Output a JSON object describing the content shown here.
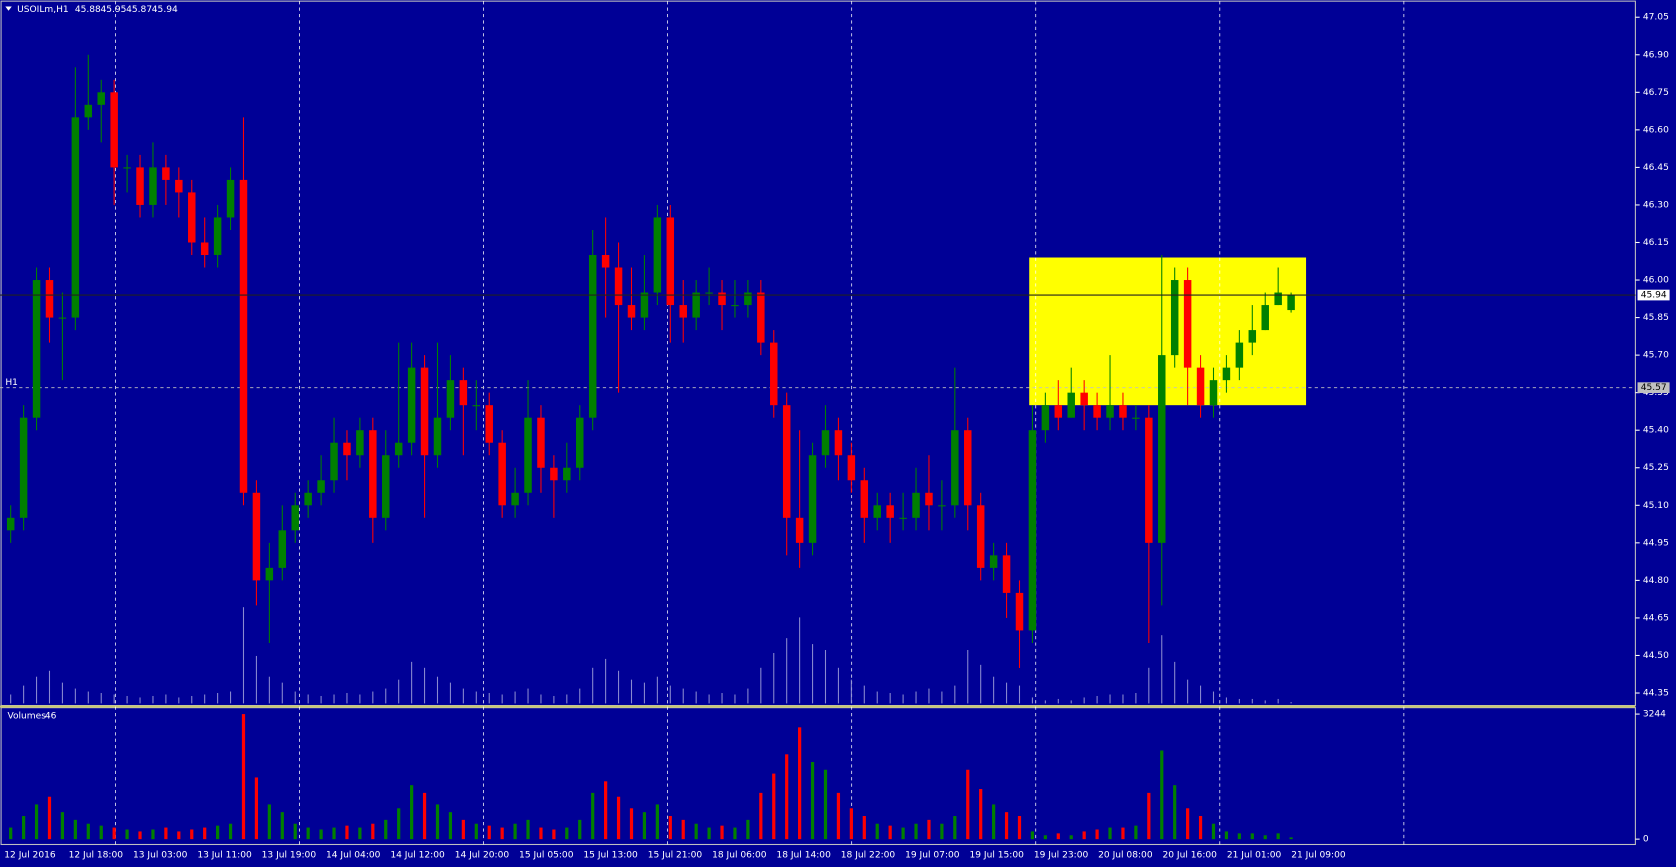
{
  "chart_data": {
    "type": "candlestick",
    "symbol": "USOILm,H1",
    "x_labels": [
      "12 Jul 2016",
      "12 Jul 18:00",
      "13 Jul 03:00",
      "13 Jul 11:00",
      "13 Jul 19:00",
      "14 Jul 04:00",
      "14 Jul 12:00",
      "14 Jul 20:00",
      "15 Jul 05:00",
      "15 Jul 13:00",
      "15 Jul 21:00",
      "18 Jul 06:00",
      "18 Jul 14:00",
      "18 Jul 22:00",
      "19 Jul 07:00",
      "19 Jul 15:00",
      "19 Jul 23:00",
      "20 Jul 08:00",
      "20 Jul 16:00",
      "21 Jul 01:00",
      "21 Jul 09:00"
    ],
    "open": [
      45.0,
      45.05,
      45.45,
      46.0,
      45.85,
      45.85,
      46.65,
      46.7,
      46.75,
      46.45,
      46.45,
      46.3,
      46.45,
      46.4,
      46.35,
      46.15,
      46.1,
      46.25,
      46.4,
      45.15,
      44.8,
      44.85,
      45.0,
      45.1,
      45.15,
      45.2,
      45.35,
      45.3,
      45.4,
      45.05,
      45.3,
      45.35,
      45.65,
      45.3,
      45.45,
      45.6,
      45.5,
      45.5,
      45.35,
      45.1,
      45.15,
      45.45,
      45.25,
      45.2,
      45.25,
      45.45,
      46.1,
      46.05,
      45.9,
      45.85,
      45.95,
      46.25,
      45.9,
      45.85,
      45.95,
      45.95,
      45.9,
      45.9,
      45.95,
      45.75,
      45.5,
      45.05,
      44.95,
      45.3,
      45.4,
      45.3,
      45.2,
      45.05,
      45.1,
      45.05,
      45.05,
      45.15,
      45.1,
      45.1,
      45.4,
      45.1,
      44.85,
      44.9,
      44.75,
      44.6,
      45.4,
      45.5,
      45.45,
      45.55,
      45.5,
      45.45,
      45.5,
      45.45,
      45.45,
      44.95,
      45.7,
      46.0,
      45.65,
      45.5,
      45.6,
      45.65,
      45.75,
      45.8,
      45.9,
      45.88
    ],
    "high": [
      45.1,
      45.5,
      46.05,
      46.05,
      45.95,
      46.85,
      46.9,
      46.8,
      46.8,
      46.5,
      46.5,
      46.55,
      46.5,
      46.45,
      46.4,
      46.25,
      46.3,
      46.45,
      46.65,
      45.2,
      44.95,
      45.1,
      45.15,
      45.2,
      45.3,
      45.45,
      45.4,
      45.45,
      45.45,
      45.4,
      45.75,
      45.75,
      45.7,
      45.75,
      45.7,
      45.65,
      45.6,
      45.55,
      45.4,
      45.25,
      45.6,
      45.5,
      45.3,
      45.35,
      45.5,
      46.2,
      46.25,
      46.15,
      46.05,
      46.1,
      46.3,
      46.3,
      46.0,
      46.0,
      46.05,
      46.0,
      46.0,
      46.0,
      46.0,
      45.8,
      45.55,
      45.4,
      45.35,
      45.5,
      45.45,
      45.35,
      45.25,
      45.15,
      45.15,
      45.15,
      45.25,
      45.3,
      45.2,
      45.65,
      45.45,
      45.15,
      44.95,
      44.95,
      44.8,
      45.5,
      45.55,
      45.6,
      45.65,
      45.6,
      45.55,
      45.7,
      45.55,
      45.5,
      45.5,
      46.1,
      46.05,
      46.05,
      45.7,
      45.65,
      45.7,
      45.8,
      45.9,
      45.95,
      46.05,
      45.95
    ],
    "low": [
      44.95,
      45.0,
      45.4,
      45.75,
      45.6,
      45.8,
      46.6,
      46.55,
      46.3,
      46.35,
      46.25,
      46.25,
      46.3,
      46.25,
      46.1,
      46.05,
      46.05,
      46.2,
      45.1,
      44.7,
      44.55,
      44.8,
      44.95,
      45.05,
      45.1,
      45.15,
      45.2,
      45.25,
      44.95,
      45.0,
      45.25,
      45.3,
      45.05,
      45.25,
      45.4,
      45.3,
      45.4,
      45.3,
      45.05,
      45.05,
      45.1,
      45.15,
      45.05,
      45.15,
      45.2,
      45.4,
      45.85,
      45.55,
      45.8,
      45.8,
      45.9,
      45.75,
      45.75,
      45.8,
      45.9,
      45.8,
      45.85,
      45.85,
      45.7,
      45.45,
      44.9,
      44.85,
      44.9,
      45.25,
      45.2,
      45.15,
      44.95,
      45.0,
      44.95,
      45.0,
      45.0,
      45.0,
      45.0,
      45.05,
      45.0,
      44.8,
      44.8,
      44.65,
      44.45,
      44.55,
      45.35,
      45.4,
      45.45,
      45.4,
      45.4,
      45.4,
      45.4,
      45.4,
      44.55,
      44.7,
      45.65,
      45.5,
      45.45,
      45.45,
      45.55,
      45.6,
      45.7,
      45.8,
      45.9,
      45.87
    ],
    "close": [
      45.05,
      45.45,
      46.0,
      45.85,
      45.85,
      46.65,
      46.7,
      46.75,
      46.45,
      46.45,
      46.3,
      46.45,
      46.4,
      46.35,
      46.15,
      46.1,
      46.25,
      46.4,
      45.15,
      44.8,
      44.85,
      45.0,
      45.1,
      45.15,
      45.2,
      45.35,
      45.3,
      45.4,
      45.05,
      45.3,
      45.35,
      45.65,
      45.3,
      45.45,
      45.6,
      45.5,
      45.5,
      45.35,
      45.1,
      45.15,
      45.45,
      45.25,
      45.2,
      45.25,
      45.45,
      46.1,
      46.05,
      45.9,
      45.85,
      45.95,
      46.25,
      45.9,
      45.85,
      45.95,
      45.95,
      45.9,
      45.9,
      45.95,
      45.75,
      45.5,
      45.05,
      44.95,
      45.3,
      45.4,
      45.3,
      45.2,
      45.05,
      45.1,
      45.05,
      45.05,
      45.15,
      45.1,
      45.1,
      45.4,
      45.1,
      44.85,
      44.9,
      44.75,
      44.6,
      45.4,
      45.5,
      45.45,
      45.55,
      45.5,
      45.45,
      45.5,
      45.45,
      45.45,
      44.95,
      45.7,
      46.0,
      45.65,
      45.5,
      45.6,
      45.65,
      45.75,
      45.8,
      45.9,
      45.95,
      45.94
    ],
    "up_color": "#008000",
    "down_color": "#ff0000",
    "ylim": [
      44.3,
      47.11
    ],
    "yticks": [
      47.05,
      {
        "value": 46.9,
        "label": "46.90"
      },
      46.75,
      {
        "value": 46.6,
        "label": "46.60"
      },
      46.45,
      {
        "value": 46.3,
        "label": "46.30"
      },
      46.15,
      {
        "value": 46,
        "label": "46.00"
      },
      45.85,
      {
        "value": 45.7,
        "label": "45.70"
      },
      45.55,
      {
        "value": 45.4,
        "label": "45.40"
      },
      45.25,
      {
        "value": 45.1,
        "label": "45.10"
      },
      44.95,
      {
        "value": 44.8,
        "label": "44.80"
      },
      44.65,
      {
        "value": 44.5,
        "label": "44.50"
      },
      44.35
    ],
    "grid": true,
    "current_price_line": true,
    "hline": {
      "name": "H1",
      "value": 45.57,
      "label": "45.57"
    },
    "highlight": {
      "high": 46.09,
      "low": 45.5,
      "color": "#ffff00"
    },
    "volume_panel": {
      "title": "Volumes",
      "ylim": [
        0,
        3244
      ],
      "yticks": [
        0,
        3244
      ],
      "values": [
        300,
        600,
        900,
        1100,
        700,
        500,
        400,
        350,
        300,
        250,
        200,
        250,
        300,
        200,
        250,
        300,
        350,
        400,
        3244,
        1600,
        900,
        700,
        400,
        300,
        250,
        300,
        350,
        300,
        400,
        500,
        800,
        1400,
        1200,
        900,
        700,
        500,
        400,
        350,
        300,
        400,
        500,
        300,
        250,
        300,
        500,
        1200,
        1500,
        1100,
        800,
        700,
        900,
        600,
        500,
        400,
        300,
        350,
        300,
        500,
        1200,
        1700,
        2200,
        2900,
        2000,
        1800,
        1200,
        800,
        600,
        400,
        350,
        300,
        400,
        500,
        400,
        600,
        1800,
        1300,
        900,
        700,
        600,
        200,
        100,
        150,
        100,
        200,
        250,
        300,
        300,
        350,
        1200,
        2300,
        1400,
        800,
        600,
        400,
        200,
        150,
        150,
        100,
        150,
        46
      ]
    }
  }
}
